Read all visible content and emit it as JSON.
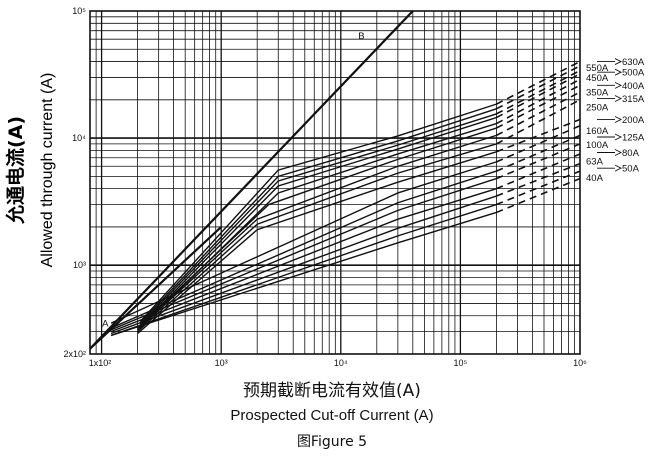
{
  "chart_data": {
    "type": "line",
    "xscale": "log",
    "yscale": "log",
    "xlim": [
      80,
      1000000
    ],
    "ylim": [
      200,
      100000
    ],
    "grid": true,
    "ylabel_zh": "允通电流(A)",
    "ylabel_en": "Allowed through current (A)",
    "xlabel_zh": "预期截断电流有效值(A)",
    "xlabel_en": "Prospected Cut-off Current (A)",
    "caption": "图Figure 5",
    "x_ticks": [
      {
        "value": 100,
        "label": "1x10²"
      },
      {
        "value": 1000,
        "label": "10³"
      },
      {
        "value": 10000,
        "label": "10⁴"
      },
      {
        "value": 100000,
        "label": "10⁵"
      },
      {
        "value": 1000000,
        "label": "10⁶"
      }
    ],
    "y_ticks": [
      {
        "value": 200,
        "label": "2x10²"
      },
      {
        "value": 1000,
        "label": "10³"
      },
      {
        "value": 10000,
        "label": "10⁴"
      },
      {
        "value": 100000,
        "label": "10⁵"
      }
    ],
    "reference_lines": [
      {
        "name": "A",
        "x": [
          80,
          1000
        ],
        "y": [
          220,
          2000
        ]
      },
      {
        "name": "B",
        "x": [
          80,
          40000
        ],
        "y": [
          220,
          100000
        ]
      }
    ],
    "series": [
      {
        "name": "630A",
        "x": [
          210,
          3000,
          30000,
          200000,
          1000000
        ],
        "y": [
          360,
          5600,
          10400,
          18500,
          40000
        ]
      },
      {
        "name": "550A",
        "x": [
          210,
          3000,
          30000,
          200000,
          1000000
        ],
        "y": [
          350,
          5000,
          9500,
          17000,
          37000
        ]
      },
      {
        "name": "500A",
        "x": [
          210,
          3000,
          30000,
          200000,
          1000000
        ],
        "y": [
          340,
          4600,
          8800,
          15500,
          34000
        ]
      },
      {
        "name": "450A",
        "x": [
          210,
          3000,
          30000,
          200000,
          1000000
        ],
        "y": [
          330,
          4200,
          8200,
          14500,
          32000
        ]
      },
      {
        "name": "400A",
        "x": [
          210,
          3000,
          30000,
          200000,
          1000000
        ],
        "y": [
          320,
          3700,
          7500,
          13000,
          29000
        ]
      },
      {
        "name": "350A",
        "x": [
          200,
          2500,
          30000,
          200000,
          1000000
        ],
        "y": [
          320,
          3000,
          6800,
          12000,
          26000
        ]
      },
      {
        "name": "315A",
        "x": [
          200,
          2000,
          30000,
          200000,
          1000000
        ],
        "y": [
          310,
          2300,
          6000,
          10500,
          23000
        ]
      },
      {
        "name": "250A",
        "x": [
          200,
          2000,
          30000,
          200000,
          1000000
        ],
        "y": [
          300,
          2100,
          5300,
          9000,
          20000
        ]
      },
      {
        "name": "200A",
        "x": [
          200,
          2000,
          30000,
          200000,
          1000000
        ],
        "y": [
          290,
          1900,
          4500,
          7800,
          14000
        ]
      },
      {
        "name": "160A",
        "x": [
          120,
          30000,
          200000,
          1000000
        ],
        "y": [
          350,
          3700,
          6500,
          12500
        ]
      },
      {
        "name": "125A",
        "x": [
          120,
          30000,
          200000,
          1000000
        ],
        "y": [
          320,
          3100,
          5500,
          10500
        ]
      },
      {
        "name": "100A",
        "x": [
          120,
          30000,
          200000,
          1000000
        ],
        "y": [
          310,
          2700,
          4800,
          9000
        ]
      },
      {
        "name": "80A",
        "x": [
          120,
          30000,
          200000,
          1000000
        ],
        "y": [
          300,
          2300,
          4000,
          7500
        ]
      },
      {
        "name": "63A",
        "x": [
          120,
          30000,
          200000,
          1000000
        ],
        "y": [
          290,
          1950,
          3500,
          6300
        ]
      },
      {
        "name": "50A",
        "x": [
          120,
          30000,
          200000,
          1000000
        ],
        "y": [
          280,
          1700,
          3000,
          5500
        ]
      },
      {
        "name": "40A",
        "x": [
          120,
          30000,
          200000,
          1000000
        ],
        "y": [
          280,
          1500,
          2600,
          4800
        ]
      }
    ],
    "right_labels": [
      {
        "name": "630A",
        "side": "right",
        "value": 40000
      },
      {
        "name": "550A",
        "side": "left",
        "value": 36000
      },
      {
        "name": "500A",
        "side": "right",
        "value": 33000
      },
      {
        "name": "450A",
        "side": "left",
        "value": 30000
      },
      {
        "name": "400A",
        "side": "right",
        "value": 26000
      },
      {
        "name": "350A",
        "side": "left",
        "value": 23000
      },
      {
        "name": "315A",
        "side": "right",
        "value": 20500
      },
      {
        "name": "250A",
        "side": "left",
        "value": 17500
      },
      {
        "name": "200A",
        "side": "right",
        "value": 14000
      },
      {
        "name": "160A",
        "side": "left",
        "value": 11500
      },
      {
        "name": "125A",
        "side": "right",
        "value": 10200
      },
      {
        "name": "100A",
        "side": "left",
        "value": 8900
      },
      {
        "name": "80A",
        "side": "right",
        "value": 7700
      },
      {
        "name": "63A",
        "side": "left",
        "value": 6600
      },
      {
        "name": "50A",
        "side": "right",
        "value": 5800
      },
      {
        "name": "40A",
        "side": "left",
        "value": 4900
      }
    ]
  }
}
